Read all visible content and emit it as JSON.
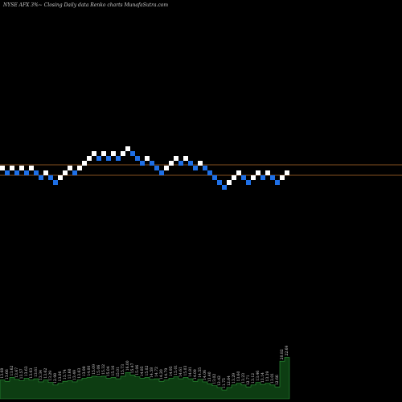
{
  "header": "NYSE AFX  3%~  Closing Daily data  Renko  charts MunafaSutra.com",
  "chart_data": {
    "type": "renko",
    "title": "",
    "grid": false,
    "colors": {
      "up_brick": "#ffffff",
      "down_brick": "#1e6fe6",
      "reference_line": "#b06a2a",
      "volume_fill": "#0d3d12",
      "volume_edge": "#2e9a3a"
    },
    "reference_lines": [
      8,
      6.5
    ],
    "bricks": [
      {
        "dir": "up",
        "level": 8
      },
      {
        "dir": "down",
        "level": 7
      },
      {
        "dir": "up",
        "level": 8
      },
      {
        "dir": "down",
        "level": 7
      },
      {
        "dir": "up",
        "level": 8
      },
      {
        "dir": "down",
        "level": 7
      },
      {
        "dir": "up",
        "level": 8
      },
      {
        "dir": "down",
        "level": 7
      },
      {
        "dir": "down",
        "level": 6
      },
      {
        "dir": "up",
        "level": 7
      },
      {
        "dir": "down",
        "level": 6
      },
      {
        "dir": "down",
        "level": 5
      },
      {
        "dir": "up",
        "level": 6
      },
      {
        "dir": "up",
        "level": 7
      },
      {
        "dir": "up",
        "level": 8
      },
      {
        "dir": "down",
        "level": 7
      },
      {
        "dir": "up",
        "level": 8
      },
      {
        "dir": "up",
        "level": 9
      },
      {
        "dir": "up",
        "level": 10
      },
      {
        "dir": "up",
        "level": 11
      },
      {
        "dir": "down",
        "level": 10
      },
      {
        "dir": "up",
        "level": 11
      },
      {
        "dir": "down",
        "level": 10
      },
      {
        "dir": "up",
        "level": 11
      },
      {
        "dir": "down",
        "level": 10
      },
      {
        "dir": "up",
        "level": 11
      },
      {
        "dir": "up",
        "level": 12
      },
      {
        "dir": "down",
        "level": 11
      },
      {
        "dir": "down",
        "level": 10
      },
      {
        "dir": "down",
        "level": 9
      },
      {
        "dir": "up",
        "level": 10
      },
      {
        "dir": "down",
        "level": 9
      },
      {
        "dir": "down",
        "level": 8
      },
      {
        "dir": "down",
        "level": 7
      },
      {
        "dir": "up",
        "level": 8
      },
      {
        "dir": "up",
        "level": 9
      },
      {
        "dir": "up",
        "level": 10
      },
      {
        "dir": "down",
        "level": 9
      },
      {
        "dir": "up",
        "level": 10
      },
      {
        "dir": "down",
        "level": 9
      },
      {
        "dir": "down",
        "level": 8
      },
      {
        "dir": "up",
        "level": 9
      },
      {
        "dir": "down",
        "level": 8
      },
      {
        "dir": "down",
        "level": 7
      },
      {
        "dir": "down",
        "level": 6
      },
      {
        "dir": "down",
        "level": 5
      },
      {
        "dir": "down",
        "level": 4
      },
      {
        "dir": "up",
        "level": 5
      },
      {
        "dir": "up",
        "level": 6
      },
      {
        "dir": "up",
        "level": 7
      },
      {
        "dir": "down",
        "level": 6
      },
      {
        "dir": "down",
        "level": 5
      },
      {
        "dir": "up",
        "level": 6
      },
      {
        "dir": "up",
        "level": 7
      },
      {
        "dir": "down",
        "level": 6
      },
      {
        "dir": "up",
        "level": 7
      },
      {
        "dir": "down",
        "level": 6
      },
      {
        "dir": "down",
        "level": 5
      },
      {
        "dir": "up",
        "level": 6
      },
      {
        "dir": "up",
        "level": 7
      }
    ],
    "volumes": [
      {
        "label": "13.68",
        "v": 30
      },
      {
        "label": "13.66",
        "v": 28
      },
      {
        "label": "13.62",
        "v": 34
      },
      {
        "label": "13.67",
        "v": 31
      },
      {
        "label": "13.57",
        "v": 29
      },
      {
        "label": "13.63",
        "v": 33
      },
      {
        "label": "13.63",
        "v": 30
      },
      {
        "label": "13.61",
        "v": 32
      },
      {
        "label": "13.34",
        "v": 27
      },
      {
        "label": "13.62",
        "v": 30
      },
      {
        "label": "13.29",
        "v": 26
      },
      {
        "label": "12.98",
        "v": 22
      },
      {
        "label": "13.06",
        "v": 25
      },
      {
        "label": "13.74",
        "v": 28
      },
      {
        "label": "13.60",
        "v": 29
      },
      {
        "label": "13.49",
        "v": 27
      },
      {
        "label": "13.63",
        "v": 30
      },
      {
        "label": "13.98",
        "v": 33
      },
      {
        "label": "14.00",
        "v": 34
      },
      {
        "label": "15.09",
        "v": 36
      },
      {
        "label": "15.06",
        "v": 35
      },
      {
        "label": "15.32",
        "v": 36
      },
      {
        "label": "15.04",
        "v": 33
      },
      {
        "label": "15.16",
        "v": 34
      },
      {
        "label": "15.01",
        "v": 32
      },
      {
        "label": "15.73",
        "v": 36
      },
      {
        "label": "16.00",
        "v": 42
      },
      {
        "label": "15.47",
        "v": 38
      },
      {
        "label": "15.06",
        "v": 35
      },
      {
        "label": "14.85",
        "v": 33
      },
      {
        "label": "15.02",
        "v": 34
      },
      {
        "label": "14.58",
        "v": 31
      },
      {
        "label": "14.72",
        "v": 32
      },
      {
        "label": "14.20",
        "v": 28
      },
      {
        "label": "14.79",
        "v": 30
      },
      {
        "label": "14.95",
        "v": 33
      },
      {
        "label": "15.01",
        "v": 35
      },
      {
        "label": "14.61",
        "v": 32
      },
      {
        "label": "15.03",
        "v": 34
      },
      {
        "label": "14.81",
        "v": 32
      },
      {
        "label": "14.09",
        "v": 28
      },
      {
        "label": "14.55",
        "v": 31
      },
      {
        "label": "14.06",
        "v": 27
      },
      {
        "label": "13.40",
        "v": 24
      },
      {
        "label": "13.02",
        "v": 21
      },
      {
        "label": "12.42",
        "v": 18
      },
      {
        "label": "11.75",
        "v": 14
      },
      {
        "label": "12.64",
        "v": 18
      },
      {
        "label": "13.29",
        "v": 22
      },
      {
        "label": "13.60",
        "v": 25
      },
      {
        "label": "13.23",
        "v": 22
      },
      {
        "label": "12.71",
        "v": 19
      },
      {
        "label": "13.12",
        "v": 22
      },
      {
        "label": "13.46",
        "v": 26
      },
      {
        "label": "13.14",
        "v": 23
      },
      {
        "label": "13.39",
        "v": 25
      },
      {
        "label": "13.01",
        "v": 22
      },
      {
        "label": "12.66",
        "v": 19
      },
      {
        "label": "20.82",
        "v": 60
      },
      {
        "label": "22.69",
        "v": 66
      }
    ]
  }
}
